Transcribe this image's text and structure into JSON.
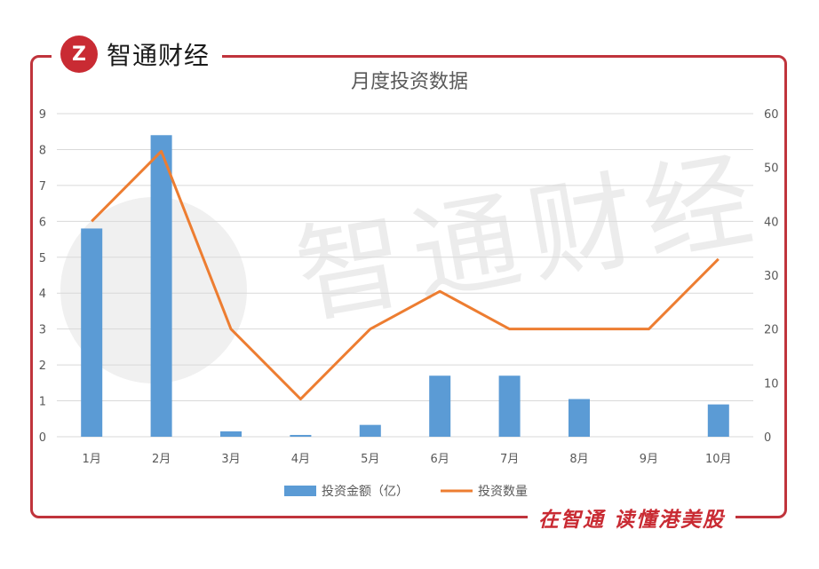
{
  "brand": {
    "logo_text": "Z",
    "name": "智通财经",
    "slogan": "在智通  读懂港美股",
    "watermark": "智通财经"
  },
  "colors": {
    "frame": "#c0343c",
    "brand": "#c92b33",
    "bar": "#5b9bd5",
    "line": "#ed7d31",
    "grid": "#d9d9d9"
  },
  "chart_data": {
    "type": "bar",
    "title": "月度投资数据",
    "categories": [
      "1月",
      "2月",
      "3月",
      "4月",
      "5月",
      "6月",
      "7月",
      "8月",
      "9月",
      "10月"
    ],
    "series": [
      {
        "name": "投资金额（亿）",
        "type": "bar",
        "axis": "left",
        "values": [
          5.8,
          8.4,
          0.15,
          0.05,
          0.33,
          1.7,
          1.7,
          1.05,
          0,
          0.9
        ]
      },
      {
        "name": "投资数量",
        "type": "line",
        "axis": "right",
        "values": [
          40,
          53,
          20,
          7,
          20,
          27,
          20,
          20,
          20,
          33
        ]
      }
    ],
    "y_left": {
      "lim": [
        0,
        9
      ],
      "ticks": [
        "0",
        "1",
        "2",
        "3",
        "4",
        "5",
        "6",
        "7",
        "8",
        "9"
      ]
    },
    "y_right": {
      "lim": [
        0,
        60
      ],
      "ticks": [
        "0",
        "10",
        "20",
        "30",
        "40",
        "50",
        "60"
      ]
    },
    "grid": true,
    "legend": "bottom"
  }
}
